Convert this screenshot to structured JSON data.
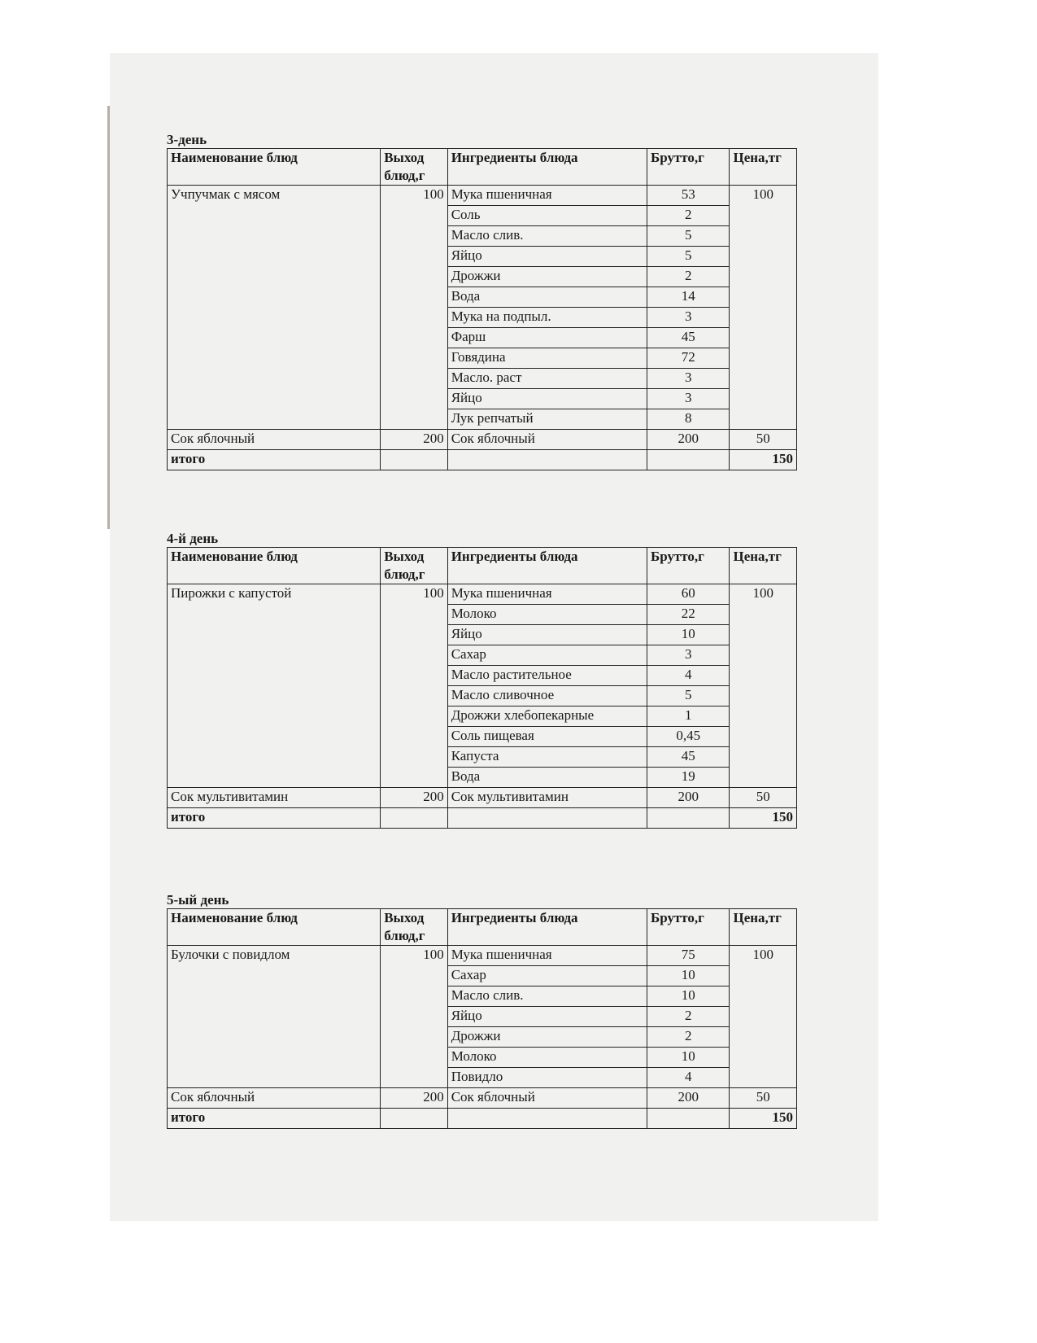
{
  "headers": {
    "name": "Наименование блюд",
    "output": "Выход блюд,г",
    "ingredients": "Ингредиенты блюда",
    "brutto": "Брутто,г",
    "price": "Цена,тг"
  },
  "total_label": "итого",
  "days": [
    {
      "title": "3-день",
      "dish": {
        "name": "Учпучмак с мясом",
        "output": "100",
        "price": "100",
        "ingredients": [
          [
            "Мука пшеничная",
            "53"
          ],
          [
            "Соль",
            "2"
          ],
          [
            "Масло слив.",
            "5"
          ],
          [
            "Яйцо",
            "5"
          ],
          [
            "Дрожжи",
            "2"
          ],
          [
            "Вода",
            "14"
          ],
          [
            "Мука на подпыл.",
            "3"
          ],
          [
            "Фарш",
            "45"
          ],
          [
            "Говядина",
            "72"
          ],
          [
            "Масло. раст",
            "3"
          ],
          [
            "Яйцо",
            "3"
          ],
          [
            "Лук репчатый",
            "8"
          ]
        ]
      },
      "drink": {
        "name": "Сок яблочный",
        "output": "200",
        "ingredient": "Сок яблочный",
        "brutto": "200",
        "price": "50"
      },
      "total": "150"
    },
    {
      "title": "4-й день",
      "dish": {
        "name": "Пирожки с капустой",
        "output": "100",
        "price": "100",
        "ingredients": [
          [
            "Мука пшеничная",
            "60"
          ],
          [
            "Молоко",
            "22"
          ],
          [
            "Яйцо",
            "10"
          ],
          [
            "Сахар",
            "3"
          ],
          [
            "Масло растительное",
            "4"
          ],
          [
            "Масло сливочное",
            "5"
          ],
          [
            "Дрожжи хлебопекарные",
            "1"
          ],
          [
            "Соль пищевая",
            "0,45"
          ],
          [
            "Капуста",
            "45"
          ],
          [
            "Вода",
            "19"
          ]
        ]
      },
      "drink": {
        "name": "Сок мультивитамин",
        "output": "200",
        "ingredient": "Сок мультивитамин",
        "brutto": "200",
        "price": "50"
      },
      "total": "150"
    },
    {
      "title": "5-ый день",
      "dish": {
        "name": "Булочки с повидлом",
        "output": "100",
        "price": "100",
        "ingredients": [
          [
            "Мука пшеничная",
            "75"
          ],
          [
            "Сахар",
            "10"
          ],
          [
            "Масло слив.",
            "10"
          ],
          [
            "Яйцо",
            "2"
          ],
          [
            "Дрожжи",
            "2"
          ],
          [
            "Молоко",
            "10"
          ],
          [
            "Повидло",
            "4"
          ]
        ]
      },
      "drink": {
        "name": "Сок яблочный",
        "output": "200",
        "ingredient": "Сок яблочный",
        "brutto": "200",
        "price": "50"
      },
      "total": "150"
    }
  ]
}
